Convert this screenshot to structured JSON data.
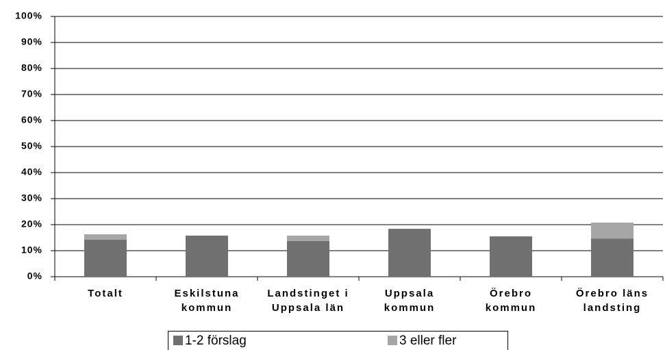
{
  "chart_data": {
    "type": "stacked_bar",
    "categories": [
      "Totalt",
      "Eskilstuna\nkommun",
      "Landstinget i\nUppsala län",
      "Uppsala\nkommun",
      "Örebro\nkommun",
      "Örebro läns\nlandsting"
    ],
    "series": [
      {
        "name": "1-2 förslag",
        "color": "#707070",
        "values": [
          14.2,
          15.8,
          13.7,
          18.4,
          15.5,
          14.7
        ]
      },
      {
        "name": "3 eller fler",
        "color": "#a6a6a6",
        "values": [
          2.1,
          0,
          2.1,
          0,
          0,
          6.1
        ]
      }
    ],
    "ylim": [
      0,
      100
    ],
    "yticks": [
      {
        "value": 0,
        "label": "0%"
      },
      {
        "value": 10,
        "label": "10%"
      },
      {
        "value": 20,
        "label": "20%"
      },
      {
        "value": 30,
        "label": "30%"
      },
      {
        "value": 40,
        "label": "40%"
      },
      {
        "value": 50,
        "label": "50%"
      },
      {
        "value": 60,
        "label": "60%"
      },
      {
        "value": 70,
        "label": "70%"
      },
      {
        "value": 80,
        "label": "80%"
      },
      {
        "value": 90,
        "label": "90%"
      },
      {
        "value": 100,
        "label": "100%"
      }
    ],
    "grid": true,
    "legend": "bottom"
  }
}
